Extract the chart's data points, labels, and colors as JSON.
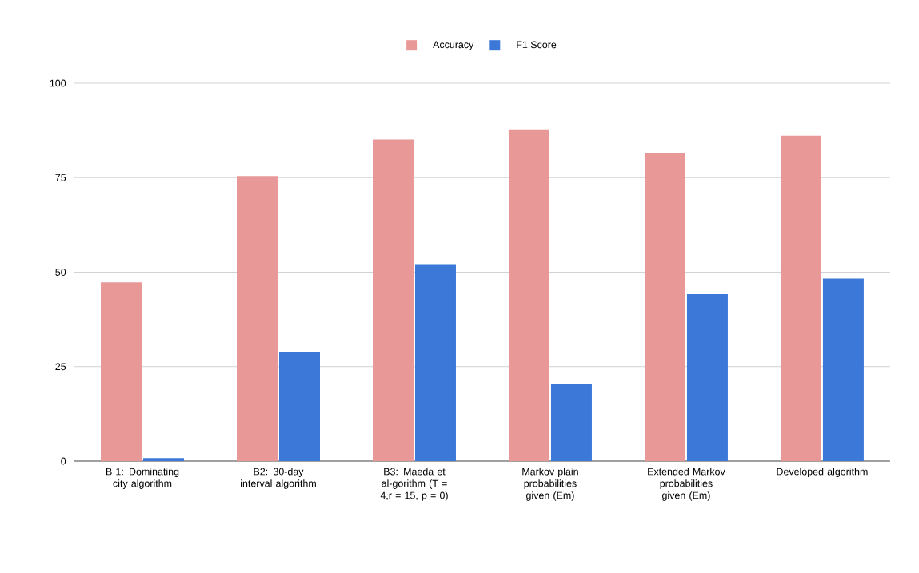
{
  "chart_data": {
    "type": "bar",
    "categories": [
      "B 1: Dominating city algorithm",
      "B2: 30-day interval algorithm",
      "B3: Maeda et al-gorithm (T = 4,r = 15, p = 0)",
      "Markov plain probabilities given (Em)",
      "Extended Markov probabilities given (Em)",
      "Developed algorithm"
    ],
    "series": [
      {
        "name": "Accuracy",
        "color": "#e99898",
        "values": [
          47.3,
          75.4,
          85.1,
          87.6,
          81.6,
          86.1
        ]
      },
      {
        "name": "F1 Score",
        "color": "#3c78d8",
        "values": [
          0.8,
          28.9,
          52.1,
          20.5,
          44.2,
          48.3
        ]
      }
    ],
    "ylim": [
      0,
      100
    ],
    "yticks": [
      0,
      25,
      50,
      75,
      100
    ],
    "grid": "y",
    "legend": "top"
  }
}
